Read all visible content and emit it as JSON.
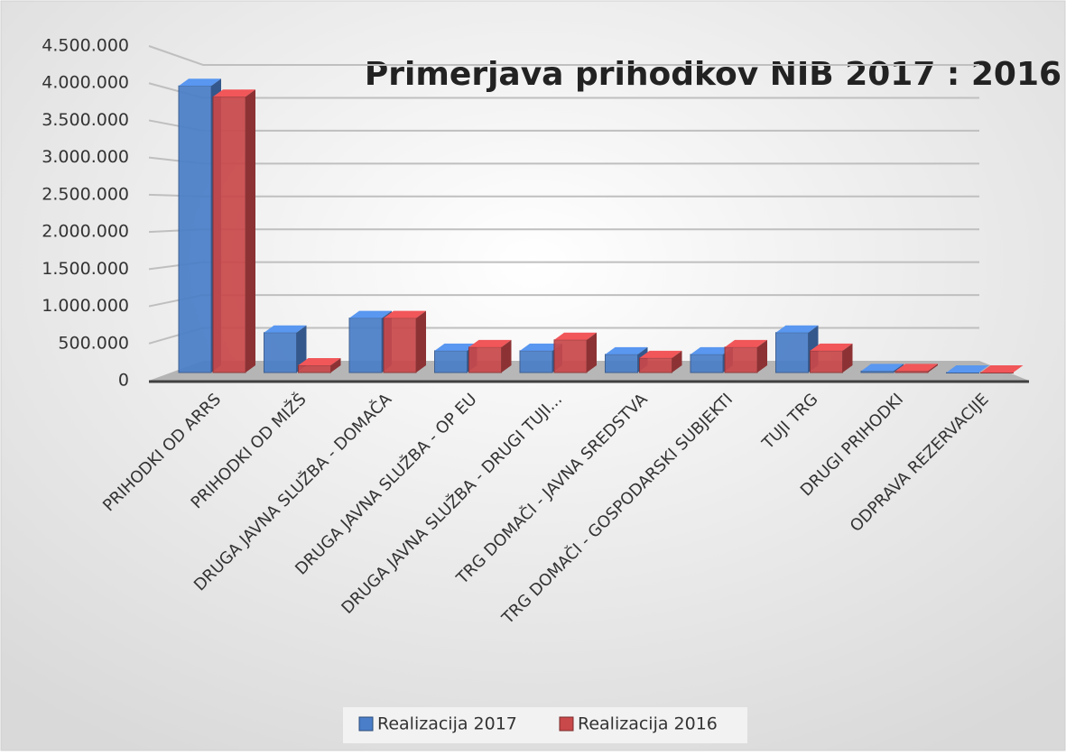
{
  "chart_data": {
    "type": "bar3d",
    "title": "Primerjava prihodkov NIB 2017 : 2016",
    "categories": [
      "PRIHODKI OD ARRS",
      "PRIHODKI OD MIŽŠ",
      "DRUGA JAVNA SLUŽBA - DOMAČA",
      "DRUGA JAVNA SLUŽBA - OP EU",
      "DRUGA JAVNA SLUŽBA - DRUGI TUJI...",
      "TRG DOMAČI - JAVNA SREDSTVA",
      "TRG DOMAČI - GOSPODARSKI SUBJEKTI",
      "TUJI TRG",
      "DRUGI PRIHODKI",
      "ODPRAVA REZERVACIJE"
    ],
    "series": [
      {
        "name": "Realizacija 2017",
        "color": "#4a7ec8",
        "values": [
          3950000,
          550000,
          750000,
          300000,
          300000,
          250000,
          250000,
          550000,
          20000,
          0
        ]
      },
      {
        "name": "Realizacija 2016",
        "color": "#c9484a",
        "values": [
          3800000,
          100000,
          750000,
          350000,
          450000,
          200000,
          350000,
          300000,
          20000,
          0
        ]
      }
    ],
    "ylim": [
      0,
      4500000
    ],
    "yticks": [
      0,
      {
        "value": 500000,
        "label": "500.000"
      },
      {
        "value": 1000000,
        "label": "1.000.000"
      },
      {
        "value": 1500000,
        "label": "1.500.000"
      },
      {
        "value": 2000000,
        "label": "2.000.000"
      },
      {
        "value": 2500000,
        "label": "2.500.000"
      },
      {
        "value": 3000000,
        "label": "3.000.000"
      },
      {
        "value": 3500000,
        "label": "3.500.000"
      },
      {
        "value": 4000000,
        "label": "4.000.000"
      },
      {
        "value": 4500000,
        "label": "4.500.000"
      }
    ],
    "grid": true,
    "legend": "bottom"
  }
}
